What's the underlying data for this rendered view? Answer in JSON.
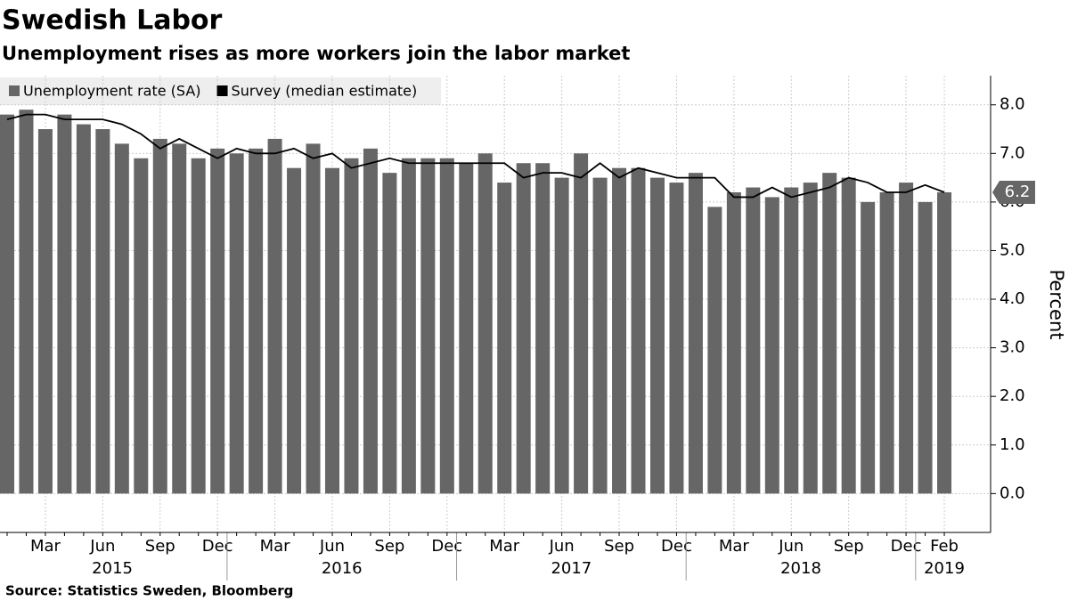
{
  "chart_data": {
    "type": "bar_line",
    "title": "Swedish Labor",
    "subtitle": "Unemployment rises as more workers join the labor market",
    "source": "Source: Statistics Sweden, Bloomberg",
    "y_label": "Percent",
    "categories": [
      null,
      null,
      "Mar",
      null,
      null,
      "Jun",
      null,
      null,
      "Sep",
      null,
      null,
      "Dec",
      null,
      null,
      "Mar",
      null,
      null,
      "Jun",
      null,
      null,
      "Sep",
      null,
      null,
      "Dec",
      null,
      null,
      "Mar",
      null,
      null,
      "Jun",
      null,
      null,
      "Sep",
      null,
      null,
      "Dec",
      null,
      null,
      "Mar",
      null,
      null,
      "Jun",
      null,
      null,
      "Sep",
      null,
      null,
      "Dec",
      null,
      "Feb"
    ],
    "years": [
      "2015",
      "2016",
      "2017",
      "2018",
      "2019"
    ],
    "series": [
      {
        "name": "Unemployment rate (SA)",
        "type": "bar",
        "color": "#666666",
        "values": [
          7.8,
          7.9,
          7.5,
          7.8,
          7.6,
          7.5,
          7.2,
          6.9,
          7.3,
          7.2,
          6.9,
          7.1,
          7.0,
          7.1,
          7.3,
          6.7,
          7.2,
          6.7,
          6.9,
          7.1,
          6.6,
          6.9,
          6.9,
          6.9,
          6.8,
          7.0,
          6.4,
          6.8,
          6.8,
          6.5,
          7.0,
          6.5,
          6.7,
          6.7,
          6.5,
          6.4,
          6.6,
          5.9,
          6.2,
          6.3,
          6.1,
          6.3,
          6.4,
          6.6,
          6.5,
          6.0,
          6.2,
          6.4,
          6.0,
          6.2
        ]
      },
      {
        "name": "Survey (median estimate)",
        "type": "line",
        "color": "#000000",
        "values": [
          7.7,
          7.8,
          7.8,
          7.7,
          7.7,
          7.7,
          7.6,
          7.4,
          7.1,
          7.3,
          7.1,
          6.9,
          7.1,
          7.0,
          7.0,
          7.1,
          6.9,
          7.0,
          6.7,
          6.8,
          6.9,
          6.8,
          6.8,
          6.8,
          6.8,
          6.8,
          6.8,
          6.5,
          6.6,
          6.6,
          6.5,
          6.8,
          6.5,
          6.7,
          6.6,
          6.5,
          6.5,
          6.5,
          6.1,
          6.1,
          6.3,
          6.1,
          6.2,
          6.3,
          6.5,
          6.4,
          6.2,
          6.2,
          6.35,
          6.2
        ]
      }
    ],
    "annotation": "6.2",
    "ylim": [
      -0.8,
      8.6
    ],
    "yticks": [
      {
        "value": 0,
        "label": "0.0"
      },
      {
        "value": 1,
        "label": "1.0"
      },
      {
        "value": 2,
        "label": "2.0"
      },
      {
        "value": 3,
        "label": "3.0"
      },
      {
        "value": 4,
        "label": "4.0"
      },
      {
        "value": 5,
        "label": "5.0"
      },
      {
        "value": 6,
        "label": "6.0"
      },
      {
        "value": 7,
        "label": "7.0"
      },
      {
        "value": 8,
        "label": "8.0"
      }
    ],
    "grid": true
  }
}
